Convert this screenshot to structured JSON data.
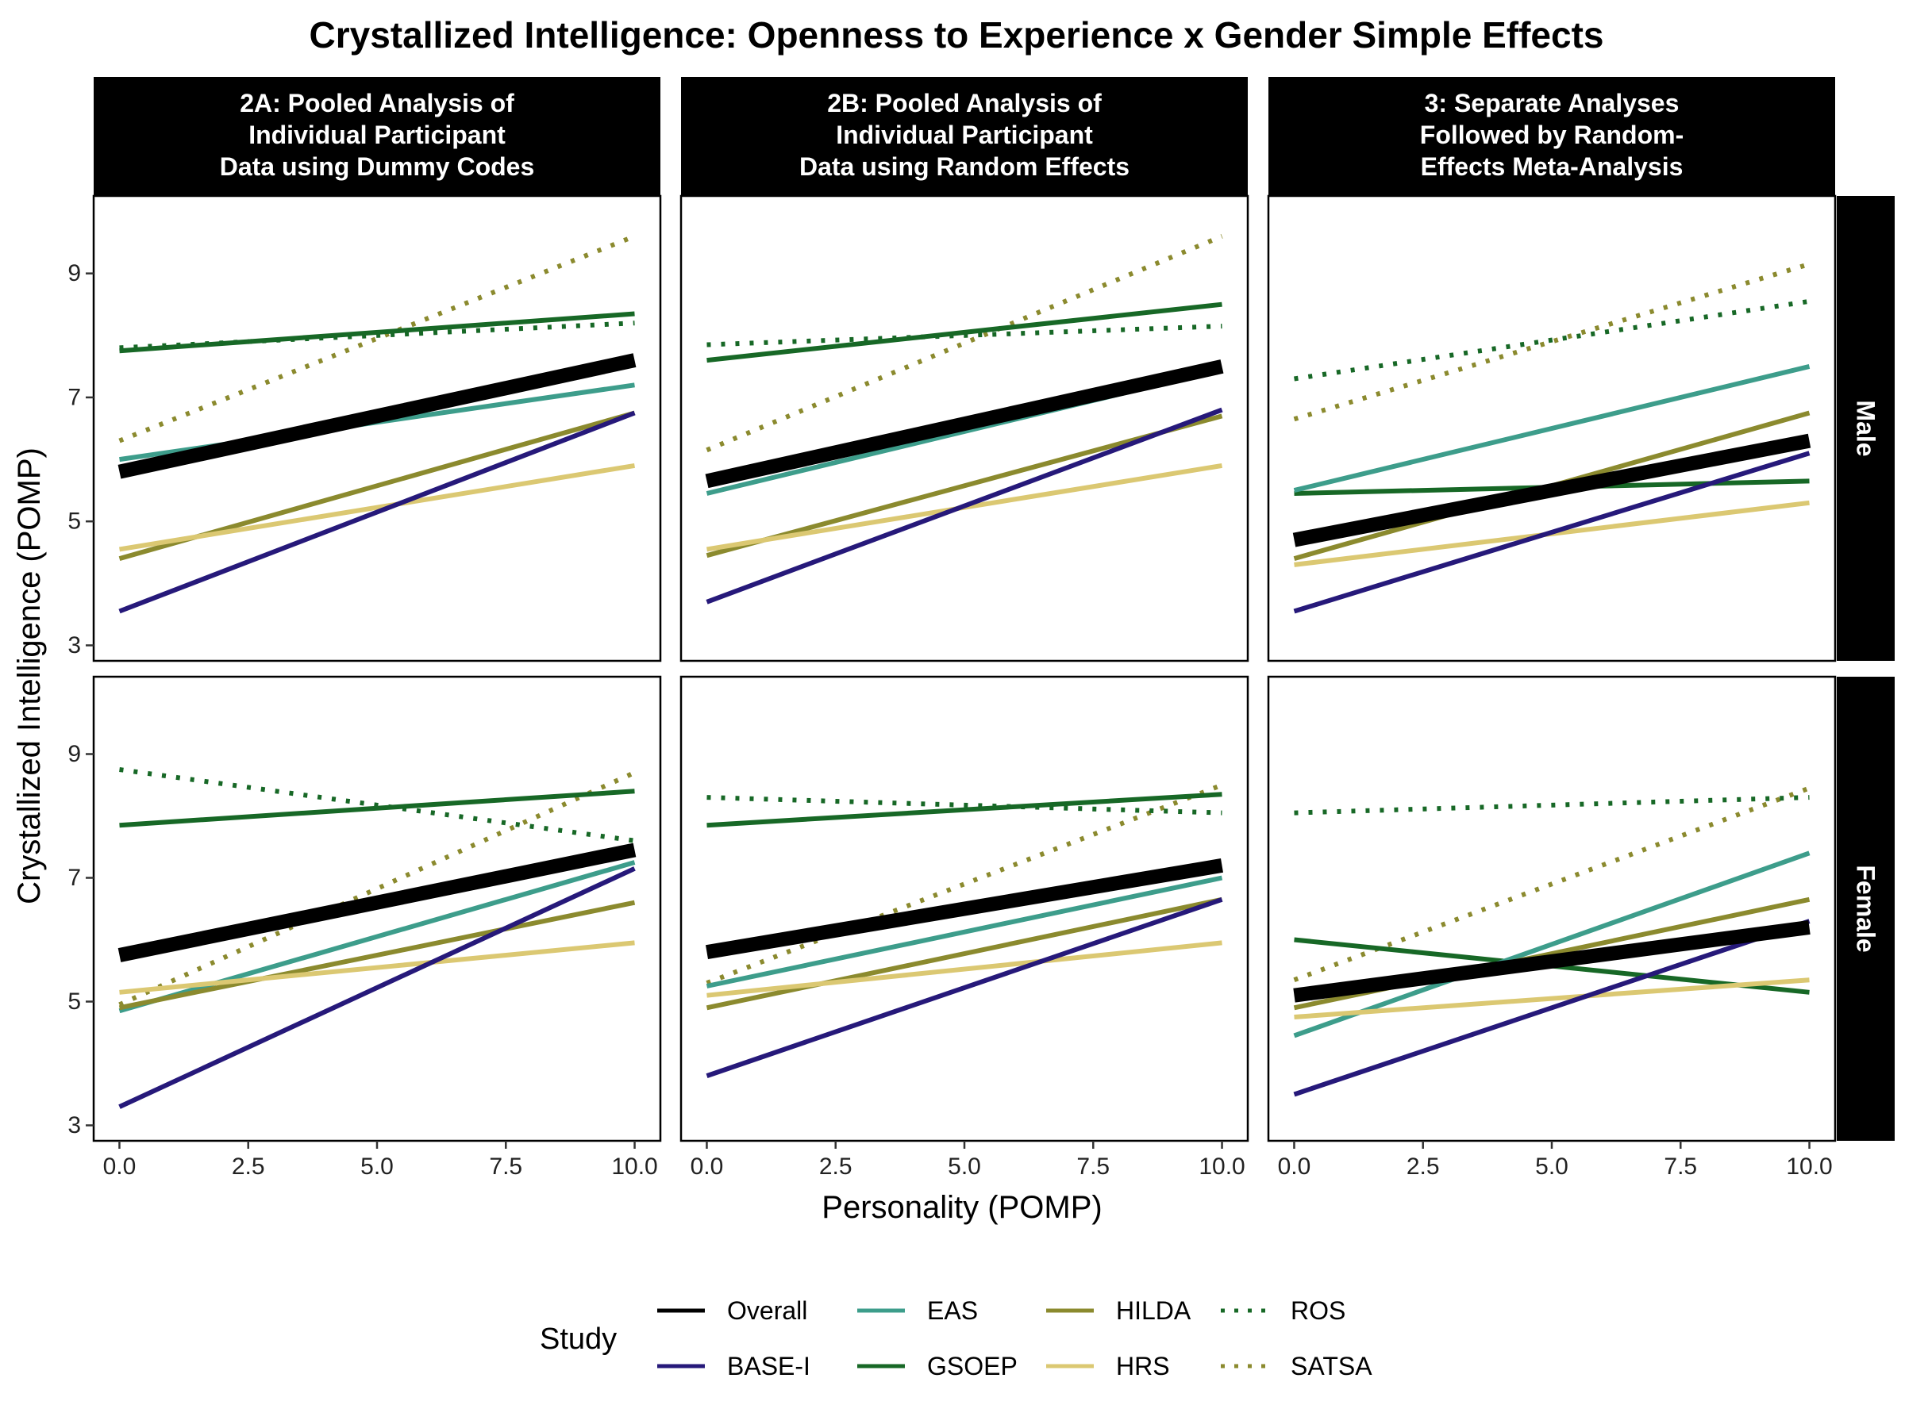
{
  "chart_data": {
    "type": "line",
    "title": "Crystallized Intelligence: Openness to Experience x Gender Simple Effects",
    "xlabel": "Personality (POMP)",
    "ylabel": "Crystallized Intelligence (POMP)",
    "xlim": [
      -0.5,
      10.5
    ],
    "ylim": [
      2.75,
      10.25
    ],
    "xticks": [
      "0.0",
      "2.5",
      "5.0",
      "7.5",
      "10.0"
    ],
    "yticks": [
      "3",
      "5",
      "7",
      "9"
    ],
    "grid": false,
    "legend_position": "bottom",
    "columns": [
      {
        "label_lines": [
          "2A: Pooled Analysis of",
          "Individual Participant",
          "Data using Dummy Codes"
        ]
      },
      {
        "label_lines": [
          "2B: Pooled Analysis of",
          "Individual Participant",
          "Data using Random Effects"
        ]
      },
      {
        "label_lines": [
          "3: Separate Analyses",
          "Followed by Random-",
          "Effects Meta-Analysis"
        ]
      }
    ],
    "rows": [
      {
        "label": "Male"
      },
      {
        "label": "Female"
      }
    ],
    "legend": {
      "title": "Study",
      "entries": [
        {
          "name": "Overall",
          "color": "#000000",
          "dash": "solid"
        },
        {
          "name": "BASE-I",
          "color": "#26197a",
          "dash": "solid"
        },
        {
          "name": "EAS",
          "color": "#3d9d8b",
          "dash": "solid"
        },
        {
          "name": "GSOEP",
          "color": "#176826",
          "dash": "solid"
        },
        {
          "name": "HILDA",
          "color": "#8b8a2e",
          "dash": "solid"
        },
        {
          "name": "HRS",
          "color": "#dbc872",
          "dash": "solid"
        },
        {
          "name": "ROS",
          "color": "#176826",
          "dash": "dotted"
        },
        {
          "name": "SATSA",
          "color": "#8b8a2e",
          "dash": "dotted"
        }
      ]
    },
    "series_style": {
      "Overall": {
        "color": "#000000",
        "dash": "solid",
        "thick": true
      },
      "BASE-I": {
        "color": "#26197a",
        "dash": "solid"
      },
      "EAS": {
        "color": "#3d9d8b",
        "dash": "solid"
      },
      "GSOEP": {
        "color": "#176826",
        "dash": "solid"
      },
      "HILDA": {
        "color": "#8b8a2e",
        "dash": "solid"
      },
      "HRS": {
        "color": "#dbc872",
        "dash": "solid"
      },
      "ROS": {
        "color": "#176826",
        "dash": "dotted"
      },
      "SATSA": {
        "color": "#8b8a2e",
        "dash": "dotted"
      }
    },
    "panels": [
      {
        "column": 0,
        "row": 0,
        "series": [
          {
            "name": "SATSA",
            "x": [
              0,
              10
            ],
            "y": [
              6.3,
              9.6
            ]
          },
          {
            "name": "ROS",
            "x": [
              0,
              10
            ],
            "y": [
              7.8,
              8.2
            ]
          },
          {
            "name": "GSOEP",
            "x": [
              0,
              10
            ],
            "y": [
              7.75,
              8.35
            ]
          },
          {
            "name": "EAS",
            "x": [
              0,
              10
            ],
            "y": [
              6.0,
              7.2
            ]
          },
          {
            "name": "HILDA",
            "x": [
              0,
              10
            ],
            "y": [
              4.4,
              6.75
            ]
          },
          {
            "name": "HRS",
            "x": [
              0,
              10
            ],
            "y": [
              4.55,
              5.9
            ]
          },
          {
            "name": "BASE-I",
            "x": [
              0,
              10
            ],
            "y": [
              3.55,
              6.75
            ]
          },
          {
            "name": "Overall",
            "x": [
              0,
              10
            ],
            "y": [
              5.8,
              7.6
            ]
          }
        ]
      },
      {
        "column": 1,
        "row": 0,
        "series": [
          {
            "name": "SATSA",
            "x": [
              0,
              10
            ],
            "y": [
              6.15,
              9.6
            ]
          },
          {
            "name": "ROS",
            "x": [
              0,
              10
            ],
            "y": [
              7.85,
              8.15
            ]
          },
          {
            "name": "GSOEP",
            "x": [
              0,
              10
            ],
            "y": [
              7.6,
              8.5
            ]
          },
          {
            "name": "EAS",
            "x": [
              0,
              10
            ],
            "y": [
              5.45,
              7.45
            ]
          },
          {
            "name": "HILDA",
            "x": [
              0,
              10
            ],
            "y": [
              4.45,
              6.7
            ]
          },
          {
            "name": "HRS",
            "x": [
              0,
              10
            ],
            "y": [
              4.55,
              5.9
            ]
          },
          {
            "name": "BASE-I",
            "x": [
              0,
              10
            ],
            "y": [
              3.7,
              6.8
            ]
          },
          {
            "name": "Overall",
            "x": [
              0,
              10
            ],
            "y": [
              5.65,
              7.5
            ]
          }
        ]
      },
      {
        "column": 2,
        "row": 0,
        "series": [
          {
            "name": "SATSA",
            "x": [
              0,
              10
            ],
            "y": [
              6.65,
              9.15
            ]
          },
          {
            "name": "ROS",
            "x": [
              0,
              10
            ],
            "y": [
              7.3,
              8.55
            ]
          },
          {
            "name": "GSOEP",
            "x": [
              0,
              10
            ],
            "y": [
              5.45,
              5.65
            ]
          },
          {
            "name": "EAS",
            "x": [
              0,
              10
            ],
            "y": [
              5.5,
              7.5
            ]
          },
          {
            "name": "HILDA",
            "x": [
              0,
              10
            ],
            "y": [
              4.4,
              6.75
            ]
          },
          {
            "name": "HRS",
            "x": [
              0,
              10
            ],
            "y": [
              4.3,
              5.3
            ]
          },
          {
            "name": "BASE-I",
            "x": [
              0,
              10
            ],
            "y": [
              3.55,
              6.1
            ]
          },
          {
            "name": "Overall",
            "x": [
              0,
              10
            ],
            "y": [
              4.7,
              6.3
            ]
          }
        ]
      },
      {
        "column": 0,
        "row": 1,
        "series": [
          {
            "name": "SATSA",
            "x": [
              0,
              10
            ],
            "y": [
              4.95,
              8.7
            ]
          },
          {
            "name": "ROS",
            "x": [
              0,
              10
            ],
            "y": [
              8.75,
              7.6
            ]
          },
          {
            "name": "GSOEP",
            "x": [
              0,
              10
            ],
            "y": [
              7.85,
              8.4
            ]
          },
          {
            "name": "EAS",
            "x": [
              0,
              10
            ],
            "y": [
              4.85,
              7.25
            ]
          },
          {
            "name": "HILDA",
            "x": [
              0,
              10
            ],
            "y": [
              4.9,
              6.6
            ]
          },
          {
            "name": "HRS",
            "x": [
              0,
              10
            ],
            "y": [
              5.15,
              5.95
            ]
          },
          {
            "name": "BASE-I",
            "x": [
              0,
              10
            ],
            "y": [
              3.3,
              7.15
            ]
          },
          {
            "name": "Overall",
            "x": [
              0,
              10
            ],
            "y": [
              5.75,
              7.45
            ]
          }
        ]
      },
      {
        "column": 1,
        "row": 1,
        "series": [
          {
            "name": "SATSA",
            "x": [
              0,
              10
            ],
            "y": [
              5.3,
              8.5
            ]
          },
          {
            "name": "ROS",
            "x": [
              0,
              10
            ],
            "y": [
              8.3,
              8.05
            ]
          },
          {
            "name": "GSOEP",
            "x": [
              0,
              10
            ],
            "y": [
              7.85,
              8.35
            ]
          },
          {
            "name": "EAS",
            "x": [
              0,
              10
            ],
            "y": [
              5.25,
              7.0
            ]
          },
          {
            "name": "HILDA",
            "x": [
              0,
              10
            ],
            "y": [
              4.9,
              6.65
            ]
          },
          {
            "name": "HRS",
            "x": [
              0,
              10
            ],
            "y": [
              5.1,
              5.95
            ]
          },
          {
            "name": "BASE-I",
            "x": [
              0,
              10
            ],
            "y": [
              3.8,
              6.65
            ]
          },
          {
            "name": "Overall",
            "x": [
              0,
              10
            ],
            "y": [
              5.8,
              7.2
            ]
          }
        ]
      },
      {
        "column": 2,
        "row": 1,
        "series": [
          {
            "name": "SATSA",
            "x": [
              0,
              10
            ],
            "y": [
              5.35,
              8.45
            ]
          },
          {
            "name": "ROS",
            "x": [
              0,
              10
            ],
            "y": [
              8.05,
              8.3
            ]
          },
          {
            "name": "GSOEP",
            "x": [
              0,
              10
            ],
            "y": [
              6.0,
              5.15
            ]
          },
          {
            "name": "EAS",
            "x": [
              0,
              10
            ],
            "y": [
              4.45,
              7.4
            ]
          },
          {
            "name": "HILDA",
            "x": [
              0,
              10
            ],
            "y": [
              4.9,
              6.65
            ]
          },
          {
            "name": "HRS",
            "x": [
              0,
              10
            ],
            "y": [
              4.75,
              5.35
            ]
          },
          {
            "name": "BASE-I",
            "x": [
              0,
              10
            ],
            "y": [
              3.5,
              6.3
            ]
          },
          {
            "name": "Overall",
            "x": [
              0,
              10
            ],
            "y": [
              5.1,
              6.2
            ]
          }
        ]
      }
    ]
  }
}
